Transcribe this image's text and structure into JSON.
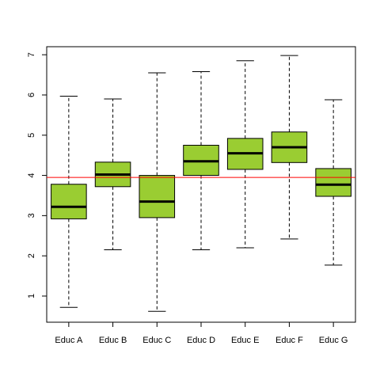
{
  "chart_data": {
    "type": "boxplot",
    "categories": [
      "Educ A",
      "Educ B",
      "Educ C",
      "Educ D",
      "Educ E",
      "Educ F",
      "Educ G"
    ],
    "boxes": [
      {
        "whisker_low": 0.72,
        "q1": 2.92,
        "median": 3.22,
        "q3": 3.78,
        "whisker_high": 5.97
      },
      {
        "whisker_low": 2.15,
        "q1": 3.72,
        "median": 4.02,
        "q3": 4.33,
        "whisker_high": 5.9
      },
      {
        "whisker_low": 0.62,
        "q1": 2.95,
        "median": 3.35,
        "q3": 4.0,
        "whisker_high": 6.55
      },
      {
        "whisker_low": 2.15,
        "q1": 4.0,
        "median": 4.35,
        "q3": 4.75,
        "whisker_high": 6.58
      },
      {
        "whisker_low": 2.2,
        "q1": 4.15,
        "median": 4.55,
        "q3": 4.92,
        "whisker_high": 6.85
      },
      {
        "whisker_low": 2.42,
        "q1": 4.32,
        "median": 4.7,
        "q3": 5.08,
        "whisker_high": 6.98
      },
      {
        "whisker_low": 1.77,
        "q1": 3.48,
        "median": 3.77,
        "q3": 4.17,
        "whisker_high": 5.88
      }
    ],
    "reference_line": 3.95,
    "yticks": [
      1,
      2,
      3,
      4,
      5,
      6,
      7
    ],
    "ylim": [
      0.35,
      7.2
    ],
    "title": "",
    "xlabel": "",
    "ylabel": "",
    "grid": false,
    "colors": {
      "box_fill": "#9ACD32",
      "box_border": "#000000",
      "reference_line": "#FF0000",
      "frame": "#000000"
    }
  }
}
